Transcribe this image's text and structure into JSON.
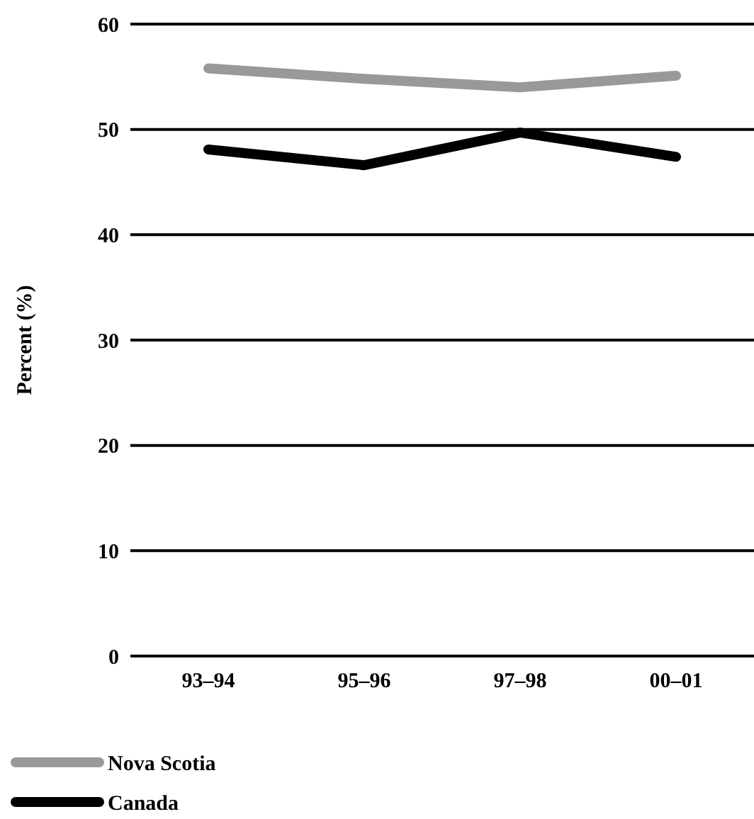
{
  "chart_data": {
    "type": "line",
    "ylabel": "Percent (%)",
    "categories": [
      "93–94",
      "95–96",
      "97–98",
      "00–01"
    ],
    "series": [
      {
        "name": "Nova Scotia",
        "color": "#999999",
        "values": [
          55.8,
          54.8,
          54.0,
          55.1
        ]
      },
      {
        "name": "Canada",
        "color": "#000000",
        "values": [
          48.1,
          46.6,
          49.7,
          47.4
        ]
      }
    ],
    "ylim": [
      0,
      60
    ],
    "yticks": [
      0,
      10,
      20,
      30,
      40,
      50,
      60
    ],
    "grid": "y",
    "legend": "bottom left",
    "marker": "none",
    "line_style": "solid"
  }
}
